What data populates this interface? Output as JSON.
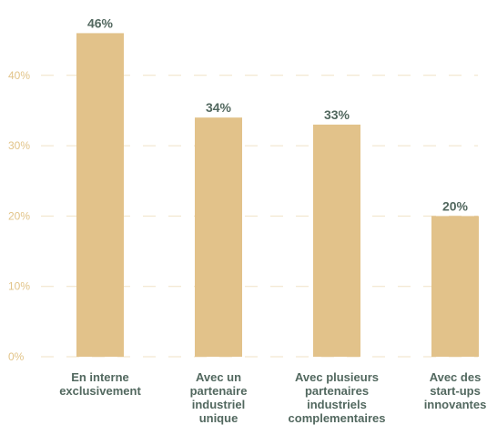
{
  "chart_data": {
    "type": "bar",
    "categories": [
      [
        "En interne",
        "exclusivement"
      ],
      [
        "Avec un",
        "partenaire",
        "industriel",
        "unique"
      ],
      [
        "Avec plusieurs",
        "partenaires",
        "industriels",
        "complementaires"
      ],
      [
        "Avec des",
        "start-ups",
        "innovantes"
      ]
    ],
    "values": [
      46,
      34,
      33,
      20
    ],
    "value_labels": [
      "46%",
      "34%",
      "33%",
      "20%"
    ],
    "yticks": [
      0,
      10,
      20,
      30,
      40
    ],
    "ytick_labels": [
      "0%",
      "10%",
      "20%",
      "30%",
      "40%"
    ],
    "ylim": [
      0,
      50
    ],
    "grid": true,
    "colors": {
      "bar": "#e2c28a",
      "value_text": "#52685f",
      "category_text": "#52685f",
      "tick_text": "#e2c489",
      "grid": "#f0e2c6"
    }
  }
}
